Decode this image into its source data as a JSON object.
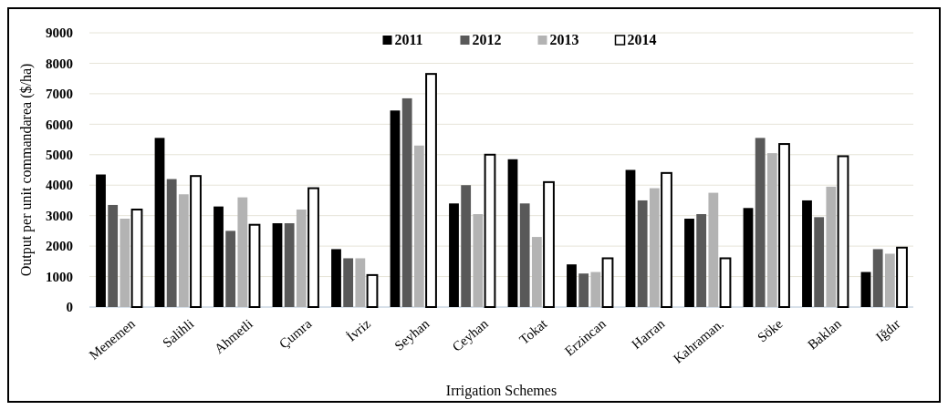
{
  "chart_data": {
    "type": "bar",
    "xlabel": "Irrigation Schemes",
    "ylabel": "Output per unit commandarea ($/ha)",
    "categories": [
      "Menemen",
      "Salihli",
      "Ahmetli",
      "Çumra",
      "İvriz",
      "Seyhan",
      "Ceyhan",
      "Tokat",
      "Erzincan",
      "Harran",
      "Kahraman.",
      "Söke",
      "Baklan",
      "Iğdır"
    ],
    "series": [
      {
        "name": "2011",
        "color": "#000000",
        "values": [
          4350,
          5550,
          3300,
          2750,
          1900,
          6450,
          3400,
          4850,
          1400,
          4500,
          2900,
          3250,
          3500,
          1150
        ]
      },
      {
        "name": "2012",
        "color": "#595959",
        "values": [
          3350,
          4200,
          2500,
          2750,
          1600,
          6850,
          4000,
          3400,
          1100,
          3500,
          3050,
          5550,
          2950,
          1900
        ]
      },
      {
        "name": "2013",
        "color": "#b3b3b3",
        "values": [
          2900,
          3700,
          3600,
          3200,
          1600,
          5300,
          3050,
          2300,
          1150,
          3900,
          3750,
          5050,
          3950,
          1750
        ]
      },
      {
        "name": "2014",
        "color": "#ffffff",
        "values": [
          3200,
          4300,
          2700,
          3900,
          1050,
          7650,
          5000,
          4100,
          1600,
          4400,
          1600,
          5350,
          4950,
          1950
        ]
      }
    ],
    "ylim": [
      0,
      9000
    ],
    "yticks": [
      0,
      1000,
      2000,
      3000,
      4000,
      5000,
      6000,
      7000,
      8000,
      9000
    ],
    "grid": "y",
    "legend": "top"
  }
}
